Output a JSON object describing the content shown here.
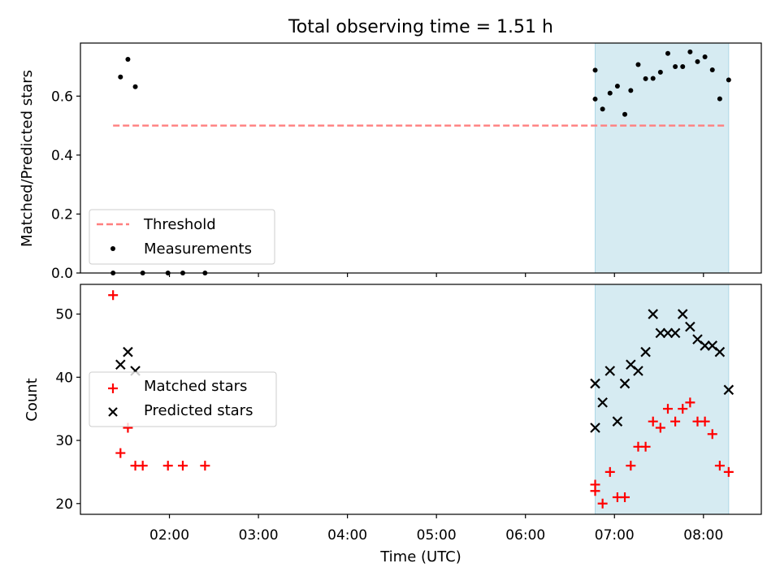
{
  "title": "Total observing time = 1.51 h",
  "x_tick_labels": [
    "02:00",
    "03:00",
    "04:00",
    "05:00",
    "06:00",
    "07:00",
    "08:00"
  ],
  "xlabel": "Time (UTC)",
  "colors": {
    "threshold": "#ff7f7f",
    "measurements": "#000000",
    "matched": "#ff0000",
    "predicted": "#000000",
    "span_fill": "#add8e6"
  },
  "chart_data": [
    {
      "type": "scatter",
      "ylabel": "Matched/Predicted stars",
      "xlim": [
        "01:00",
        "08:39"
      ],
      "ylim": [
        0,
        0.78
      ],
      "y_ticks": [
        0.0,
        0.2,
        0.4,
        0.6
      ],
      "y_tick_labels": [
        "0.0",
        "0.2",
        "0.4",
        "0.6"
      ],
      "legend_position": "lower-left",
      "shaded_span": {
        "start": "06:47",
        "end": "08:17"
      },
      "threshold": {
        "name": "Threshold",
        "value": 0.5,
        "from": "01:22",
        "to": "08:15",
        "style": "dashed"
      },
      "series": [
        {
          "name": "Measurements",
          "marker": "dot",
          "points": [
            {
              "x": "01:22",
              "y": 0.0
            },
            {
              "x": "01:27",
              "y": 0.665
            },
            {
              "x": "01:32",
              "y": 0.725
            },
            {
              "x": "01:37",
              "y": 0.632
            },
            {
              "x": "01:42",
              "y": 0.0
            },
            {
              "x": "01:59",
              "y": 0.0
            },
            {
              "x": "02:09",
              "y": 0.0
            },
            {
              "x": "02:24",
              "y": 0.0
            },
            {
              "x": "06:47",
              "y": 0.59
            },
            {
              "x": "06:47",
              "y": 0.688
            },
            {
              "x": "06:52",
              "y": 0.556
            },
            {
              "x": "06:57",
              "y": 0.61
            },
            {
              "x": "07:02",
              "y": 0.634
            },
            {
              "x": "07:07",
              "y": 0.538
            },
            {
              "x": "07:11",
              "y": 0.619
            },
            {
              "x": "07:16",
              "y": 0.707
            },
            {
              "x": "07:21",
              "y": 0.659
            },
            {
              "x": "07:26",
              "y": 0.66
            },
            {
              "x": "07:31",
              "y": 0.681
            },
            {
              "x": "07:36",
              "y": 0.745
            },
            {
              "x": "07:41",
              "y": 0.7
            },
            {
              "x": "07:46",
              "y": 0.7
            },
            {
              "x": "07:51",
              "y": 0.75
            },
            {
              "x": "07:56",
              "y": 0.717
            },
            {
              "x": "08:01",
              "y": 0.733
            },
            {
              "x": "08:06",
              "y": 0.689
            },
            {
              "x": "08:11",
              "y": 0.591
            },
            {
              "x": "08:17",
              "y": 0.655
            }
          ]
        }
      ]
    },
    {
      "type": "scatter",
      "ylabel": "Count",
      "xlim": [
        "01:00",
        "08:39"
      ],
      "ylim": [
        18.3,
        54.7
      ],
      "y_ticks": [
        20,
        30,
        40,
        50
      ],
      "y_tick_labels": [
        "20",
        "30",
        "40",
        "50"
      ],
      "legend_position": "center-left",
      "shaded_span": {
        "start": "06:47",
        "end": "08:17"
      },
      "series": [
        {
          "name": "Matched stars",
          "marker": "plus",
          "points": [
            {
              "x": "01:22",
              "y": 53
            },
            {
              "x": "01:27",
              "y": 28
            },
            {
              "x": "01:32",
              "y": 32
            },
            {
              "x": "01:37",
              "y": 26
            },
            {
              "x": "01:42",
              "y": 26
            },
            {
              "x": "01:59",
              "y": 26
            },
            {
              "x": "02:09",
              "y": 26
            },
            {
              "x": "02:24",
              "y": 26
            },
            {
              "x": "06:47",
              "y": 23
            },
            {
              "x": "06:47",
              "y": 22
            },
            {
              "x": "06:52",
              "y": 20
            },
            {
              "x": "06:57",
              "y": 25
            },
            {
              "x": "07:02",
              "y": 21
            },
            {
              "x": "07:07",
              "y": 21
            },
            {
              "x": "07:11",
              "y": 26
            },
            {
              "x": "07:16",
              "y": 29
            },
            {
              "x": "07:21",
              "y": 29
            },
            {
              "x": "07:26",
              "y": 33
            },
            {
              "x": "07:31",
              "y": 32
            },
            {
              "x": "07:36",
              "y": 35
            },
            {
              "x": "07:41",
              "y": 33
            },
            {
              "x": "07:46",
              "y": 35
            },
            {
              "x": "07:51",
              "y": 36
            },
            {
              "x": "07:56",
              "y": 33
            },
            {
              "x": "08:01",
              "y": 33
            },
            {
              "x": "08:06",
              "y": 31
            },
            {
              "x": "08:11",
              "y": 26
            },
            {
              "x": "08:17",
              "y": 25
            }
          ]
        },
        {
          "name": "Predicted stars",
          "marker": "x",
          "points": [
            {
              "x": "01:27",
              "y": 42
            },
            {
              "x": "01:32",
              "y": 44
            },
            {
              "x": "01:37",
              "y": 41
            },
            {
              "x": "06:47",
              "y": 39
            },
            {
              "x": "06:47",
              "y": 32
            },
            {
              "x": "06:52",
              "y": 36
            },
            {
              "x": "06:57",
              "y": 41
            },
            {
              "x": "07:02",
              "y": 33
            },
            {
              "x": "07:07",
              "y": 39
            },
            {
              "x": "07:11",
              "y": 42
            },
            {
              "x": "07:16",
              "y": 41
            },
            {
              "x": "07:21",
              "y": 44
            },
            {
              "x": "07:26",
              "y": 50
            },
            {
              "x": "07:31",
              "y": 47
            },
            {
              "x": "07:36",
              "y": 47
            },
            {
              "x": "07:41",
              "y": 47
            },
            {
              "x": "07:46",
              "y": 50
            },
            {
              "x": "07:51",
              "y": 48
            },
            {
              "x": "07:56",
              "y": 46
            },
            {
              "x": "08:01",
              "y": 45
            },
            {
              "x": "08:06",
              "y": 45
            },
            {
              "x": "08:11",
              "y": 44
            },
            {
              "x": "08:17",
              "y": 38
            }
          ]
        }
      ]
    }
  ]
}
